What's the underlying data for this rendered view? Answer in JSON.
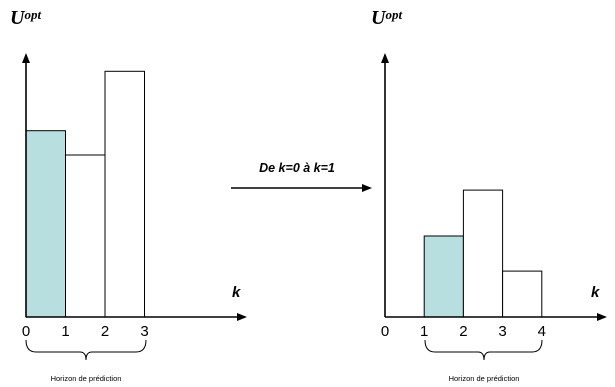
{
  "colors": {
    "highlight_bar": "#b7dfe0",
    "plain_bar": "#ffffff",
    "ink": "#000000"
  },
  "panels": [
    {
      "y_axis_label_main": "U",
      "y_axis_label_sup": "opt",
      "x_axis_label": "k",
      "ticks": [
        "0",
        "1",
        "2",
        "3"
      ],
      "bars": [
        {
          "k_start": 0,
          "k_end": 1,
          "value": 0.69,
          "highlight": true
        },
        {
          "k_start": 1,
          "k_end": 2,
          "value": 0.6,
          "highlight": false
        },
        {
          "k_start": 2,
          "k_end": 3,
          "value": 0.91,
          "highlight": false
        }
      ],
      "horizon_label": "Horizon de prédiction",
      "horizon_range": [
        0,
        3
      ]
    },
    {
      "y_axis_label_main": "U",
      "y_axis_label_sup": "opt",
      "x_axis_label": "k",
      "ticks": [
        "0",
        "1",
        "2",
        "3",
        "4"
      ],
      "bars": [
        {
          "k_start": 1,
          "k_end": 2,
          "value": 0.3,
          "highlight": true
        },
        {
          "k_start": 2,
          "k_end": 3,
          "value": 0.47,
          "highlight": false
        },
        {
          "k_start": 3,
          "k_end": 4,
          "value": 0.17,
          "highlight": false
        }
      ],
      "horizon_label": "Horizon de prédiction",
      "horizon_range": [
        1,
        4
      ]
    }
  ],
  "transition_label": "De k=0 à k=1"
}
